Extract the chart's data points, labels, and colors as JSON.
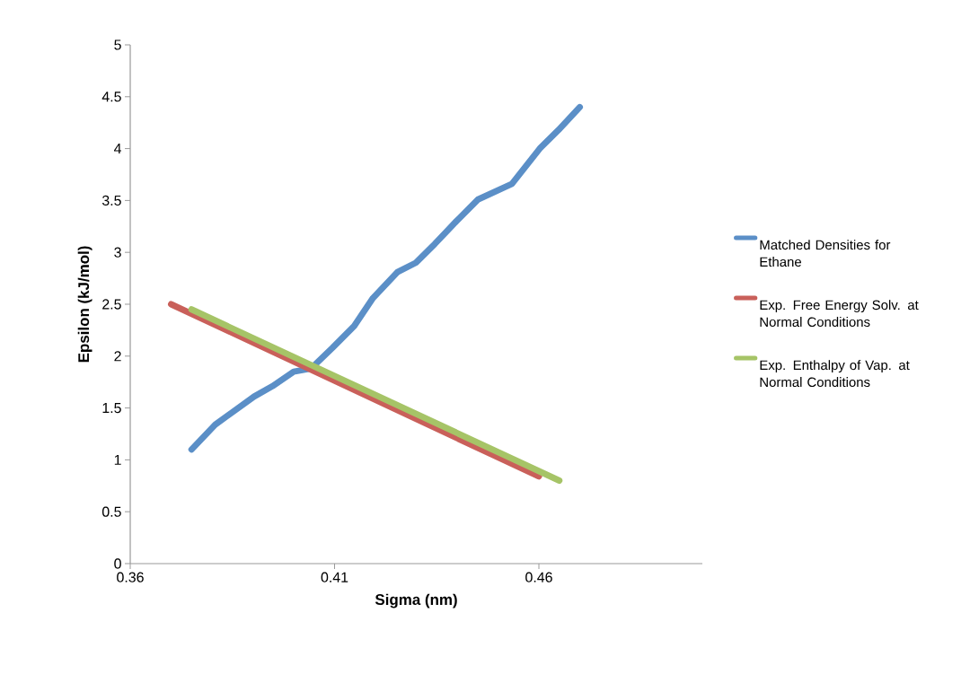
{
  "chart_data": {
    "type": "line",
    "xlabel": "Sigma (nm)",
    "ylabel": "Epsilon (kJ/mol)",
    "xlim": [
      0.36,
      0.5
    ],
    "xticks": [
      0.36,
      0.41,
      0.46
    ],
    "ylim": [
      0,
      5
    ],
    "yticks": [
      0,
      0.5,
      1,
      1.5,
      2,
      2.5,
      3,
      3.5,
      4,
      4.5,
      5
    ],
    "grid": false,
    "legend": "right",
    "marker": "none",
    "line_style": "solid",
    "series": [
      {
        "name": "Matched Densities for Ethane",
        "color": "#5b8fc7",
        "x": [
          0.375,
          0.3808,
          0.3903,
          0.3948,
          0.4,
          0.4042,
          0.4095,
          0.4148,
          0.4194,
          0.4254,
          0.4299,
          0.4345,
          0.4398,
          0.4451,
          0.4534,
          0.4602,
          0.4648,
          0.47
        ],
        "values": [
          1.1,
          1.34,
          1.61,
          1.71,
          1.85,
          1.88,
          2.08,
          2.29,
          2.56,
          2.81,
          2.9,
          3.08,
          3.3,
          3.51,
          3.66,
          4.0,
          4.18,
          4.4
        ]
      },
      {
        "name": "Exp. Free Energy Solv. at Normal Conditions",
        "color": "#c9605a",
        "x": [
          0.37,
          0.46
        ],
        "values": [
          2.5,
          0.84
        ]
      },
      {
        "name": "Exp. Enthalpy of Vap. at Normal Conditions",
        "color": "#a6c467",
        "x": [
          0.375,
          0.465
        ],
        "values": [
          2.45,
          0.8
        ]
      }
    ]
  }
}
